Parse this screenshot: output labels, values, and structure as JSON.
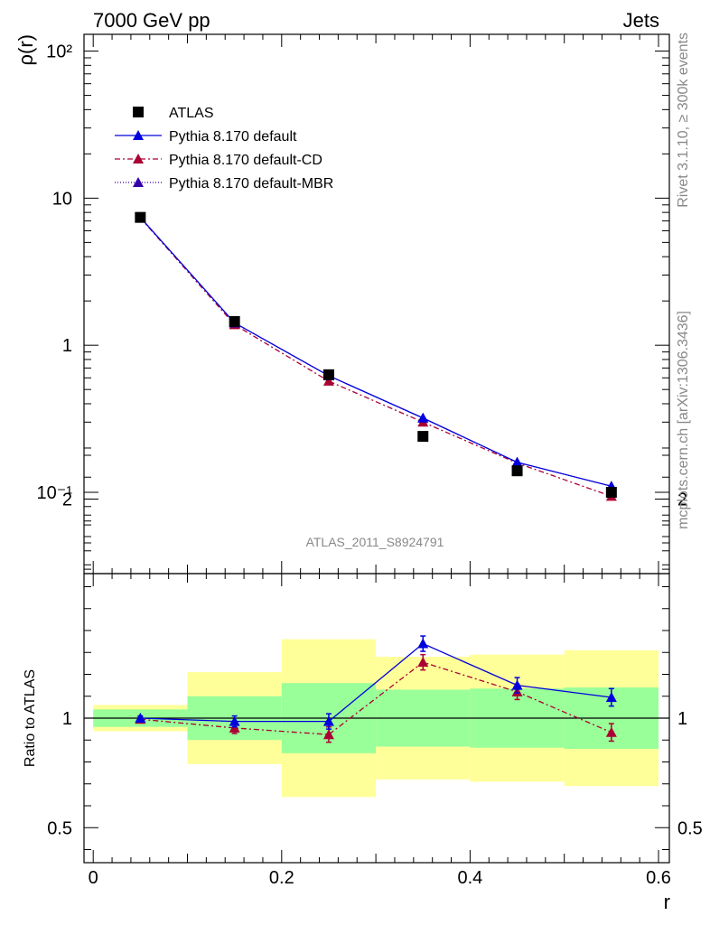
{
  "header": {
    "left_title": "7000 GeV pp",
    "right_title": "Jets"
  },
  "side_labels": {
    "rivet": "Rivet 3.1.10, ≥ 300k events",
    "mcplots": "mcplots.cern.ch [arXiv:1306.3436]"
  },
  "analysis_label": "ATLAS_2011_S8924791",
  "colors": {
    "data": "#000000",
    "default": "#0000dd",
    "cd": "#aa0033",
    "mbr": "#3300aa",
    "band_inner": "#99ff99",
    "band_outer": "#ffff99"
  },
  "chart_data": [
    {
      "type": "line",
      "panel": "main",
      "ylabel": "ρ(r)",
      "yscale": "log",
      "ylim": [
        0.028,
        130
      ],
      "xlim": [
        -0.013,
        0.6
      ],
      "y_tick_labels": [
        "10⁻¹",
        "1",
        "10",
        "10²"
      ],
      "legend": {
        "placement": "top-left",
        "entries": [
          "ATLAS",
          "Pythia 8.170 default",
          "Pythia 8.170 default-CD",
          "Pythia 8.170 default-MBR"
        ]
      },
      "x": [
        0.05,
        0.15,
        0.25,
        0.35,
        0.45,
        0.55
      ],
      "series": [
        {
          "name": "ATLAS",
          "style": "square",
          "values": [
            7.4,
            1.45,
            0.63,
            0.24,
            0.14,
            0.1
          ]
        },
        {
          "name": "Pythia 8.170 default",
          "style": "solid",
          "values": [
            7.4,
            1.42,
            0.62,
            0.32,
            0.16,
            0.11
          ]
        },
        {
          "name": "Pythia 8.170 default-CD",
          "style": "dashdot",
          "values": [
            7.35,
            1.38,
            0.57,
            0.3,
            0.158,
            0.094
          ]
        },
        {
          "name": "Pythia 8.170 default-MBR",
          "style": "dotted",
          "values": [
            7.4,
            1.42,
            0.62,
            0.32,
            0.16,
            0.11
          ]
        }
      ]
    },
    {
      "type": "line",
      "panel": "ratio",
      "ylabel": "Ratio to ATLAS",
      "xlabel": "r",
      "ylim": [
        0.3,
        2.3
      ],
      "xlim": [
        -0.013,
        0.6
      ],
      "x_tick_labels": [
        "0",
        "0.2",
        "0.4",
        "0.6"
      ],
      "y_tick_labels": [
        "0.5",
        "1",
        "2"
      ],
      "bins": [
        [
          0.0,
          0.1
        ],
        [
          0.1,
          0.2
        ],
        [
          0.2,
          0.3
        ],
        [
          0.3,
          0.4
        ],
        [
          0.4,
          0.5
        ],
        [
          0.5,
          0.6
        ]
      ],
      "band_inner": [
        [
          0.96,
          1.04
        ],
        [
          0.9,
          1.1
        ],
        [
          0.84,
          1.16
        ],
        [
          0.87,
          1.13
        ],
        [
          0.865,
          1.135
        ],
        [
          0.86,
          1.14
        ]
      ],
      "band_outer": [
        [
          0.94,
          1.06
        ],
        [
          0.79,
          1.21
        ],
        [
          0.64,
          1.36
        ],
        [
          0.72,
          1.28
        ],
        [
          0.71,
          1.29
        ],
        [
          0.69,
          1.31
        ]
      ],
      "x": [
        0.05,
        0.15,
        0.25,
        0.35,
        0.45,
        0.55
      ],
      "series": [
        {
          "name": "Pythia 8.170 default",
          "style": "solid",
          "values": [
            1.0,
            0.985,
            0.985,
            1.34,
            1.15,
            1.095
          ],
          "errors": [
            0.01,
            0.025,
            0.035,
            0.035,
            0.035,
            0.04
          ]
        },
        {
          "name": "Pythia 8.170 default-CD",
          "style": "dashdot",
          "values": [
            0.995,
            0.955,
            0.925,
            1.255,
            1.12,
            0.935
          ],
          "errors": [
            0.01,
            0.025,
            0.035,
            0.035,
            0.035,
            0.04
          ]
        }
      ]
    }
  ]
}
